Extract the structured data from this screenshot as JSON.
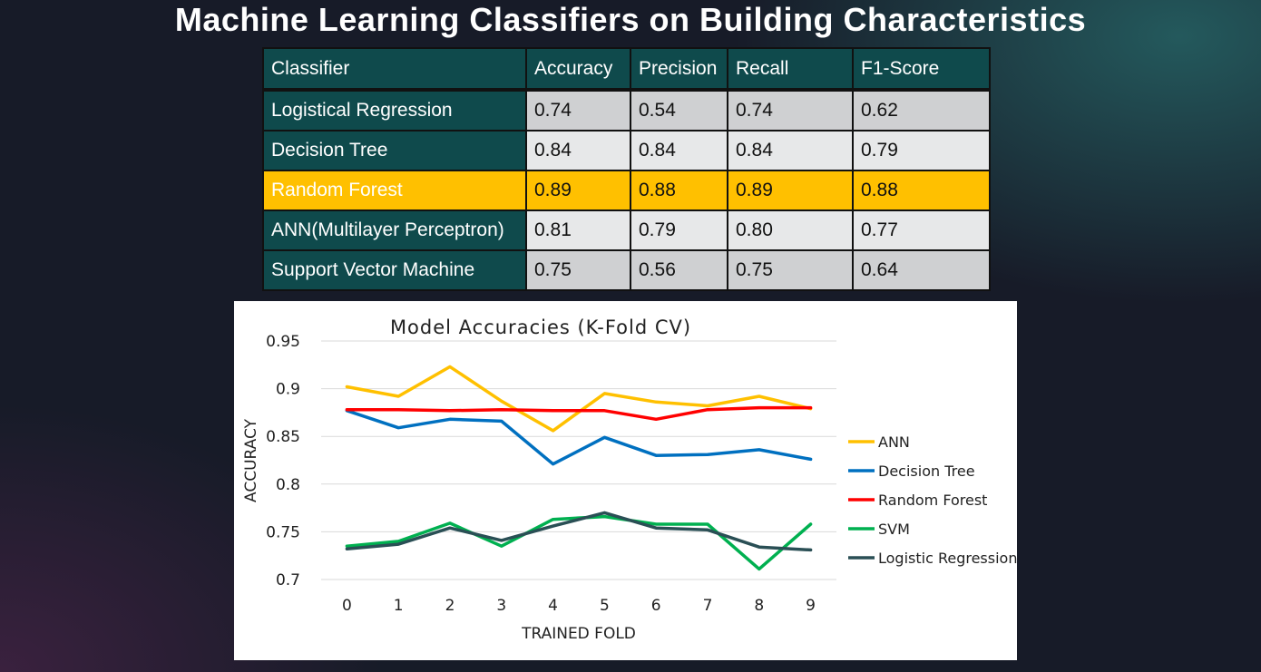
{
  "page": {
    "title": "Machine Learning Classifiers on Building Characteristics"
  },
  "table": {
    "headers": [
      "Classifier",
      "Accuracy",
      "Precision",
      "Recall",
      "F1-Score"
    ],
    "highlight_row": 2,
    "highlight_color": "#ffc000",
    "rows": [
      [
        "Logistical Regression",
        "0.74",
        "0.54",
        "0.74",
        "0.62"
      ],
      [
        "Decision Tree",
        "0.84",
        "0.84",
        "0.84",
        "0.79"
      ],
      [
        "Random Forest",
        "0.89",
        "0.88",
        "0.89",
        "0.88"
      ],
      [
        "ANN(Multilayer Perceptron)",
        "0.81",
        "0.79",
        "0.80",
        "0.77"
      ],
      [
        "Support Vector Machine",
        "0.75",
        "0.56",
        "0.75",
        "0.64"
      ]
    ]
  },
  "chart_data": {
    "type": "line",
    "title": "Model Accuracies (K-Fold CV)",
    "xlabel": "TRAINED FOLD",
    "ylabel": "ACCURACY",
    "x": [
      0,
      1,
      2,
      3,
      4,
      5,
      6,
      7,
      8,
      9
    ],
    "ylim": [
      0.7,
      0.95
    ],
    "yticks": [
      "0.95",
      "0.9",
      "0.85",
      "0.8",
      "0.75",
      "0.7"
    ],
    "grid": true,
    "legend": "right",
    "series": [
      {
        "name": "ANN",
        "color": "#ffc000",
        "values": [
          0.902,
          0.892,
          0.923,
          0.887,
          0.856,
          0.895,
          0.886,
          0.882,
          0.892,
          0.879
        ]
      },
      {
        "name": "Decision Tree",
        "color": "#0070c0",
        "values": [
          0.877,
          0.859,
          0.868,
          0.866,
          0.821,
          0.849,
          0.83,
          0.831,
          0.836,
          0.826
        ]
      },
      {
        "name": "Random Forest",
        "color": "#ff0000",
        "values": [
          0.878,
          0.878,
          0.877,
          0.878,
          0.877,
          0.877,
          0.868,
          0.878,
          0.88,
          0.88
        ]
      },
      {
        "name": "SVM",
        "color": "#00b050",
        "values": [
          0.735,
          0.74,
          0.759,
          0.735,
          0.763,
          0.766,
          0.758,
          0.758,
          0.711,
          0.758
        ]
      },
      {
        "name": "Logistic Regression",
        "color": "#2a4f55",
        "values": [
          0.732,
          0.737,
          0.754,
          0.741,
          0.756,
          0.77,
          0.754,
          0.752,
          0.734,
          0.731
        ]
      }
    ]
  }
}
